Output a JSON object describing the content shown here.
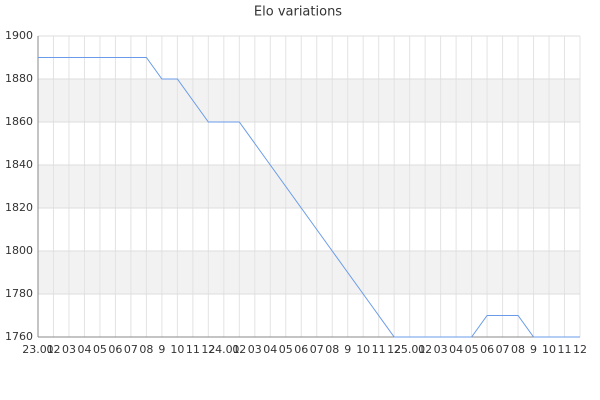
{
  "chart_data": {
    "type": "line",
    "title": "Elo variations",
    "categories": [
      "23.01",
      "02",
      "03",
      "04",
      "05",
      "06",
      "07",
      "08",
      "9",
      "10",
      "11",
      "12",
      "24.01",
      "02",
      "03",
      "04",
      "05",
      "06",
      "07",
      "08",
      "9",
      "10",
      "11",
      "12",
      "25.01",
      "02",
      "03",
      "04",
      "05",
      "06",
      "07",
      "08",
      "9",
      "10",
      "11",
      "12"
    ],
    "series": [
      {
        "name": "Elo",
        "color": "#6a9be8",
        "values": [
          1890,
          1890,
          1890,
          1890,
          1890,
          1890,
          1890,
          1890,
          1880,
          1880,
          1870,
          1860,
          1860,
          1860,
          1850,
          1840,
          1830,
          1820,
          1810,
          1800,
          1790,
          1780,
          1770,
          1760,
          1760,
          1760,
          1760,
          1760,
          1760,
          1770,
          1770,
          1770,
          1760,
          1760,
          1760,
          1760
        ]
      }
    ],
    "ylim": [
      1760,
      1900
    ],
    "yticks": [
      1760,
      1780,
      1800,
      1820,
      1840,
      1860,
      1880,
      1900
    ],
    "grid": true
  }
}
